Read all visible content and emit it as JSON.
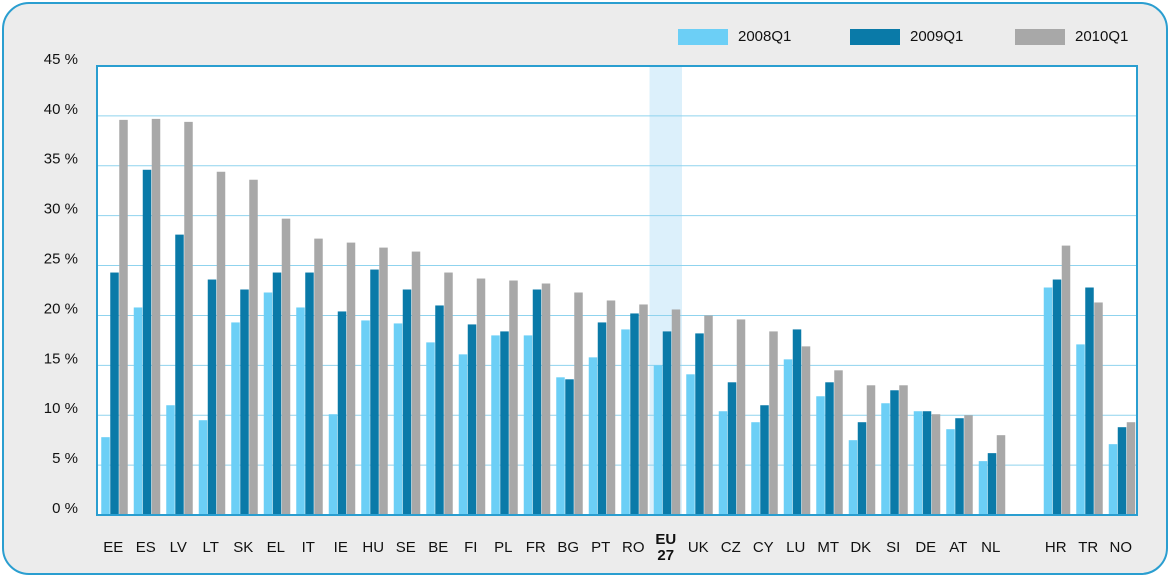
{
  "chart_data": {
    "type": "bar",
    "categories": [
      "EE",
      "ES",
      "LV",
      "LT",
      "SK",
      "EL",
      "IT",
      "IE",
      "HU",
      "SE",
      "BE",
      "FI",
      "PL",
      "FR",
      "BG",
      "PT",
      "RO",
      "EU 27",
      "UK",
      "CZ",
      "CY",
      "LU",
      "MT",
      "DK",
      "SI",
      "DE",
      "AT",
      "NL",
      null,
      "HR",
      "TR",
      "NO"
    ],
    "series": [
      {
        "name": "2008Q1",
        "color": "#6ccff6",
        "values": [
          7.8,
          20.8,
          11.0,
          9.5,
          19.3,
          22.3,
          20.8,
          10.1,
          19.5,
          19.2,
          17.3,
          16.1,
          18.0,
          18.0,
          13.8,
          15.8,
          18.6,
          15.0,
          14.1,
          10.4,
          9.3,
          15.6,
          11.9,
          7.5,
          11.2,
          10.4,
          8.6,
          5.4,
          null,
          22.8,
          17.1,
          7.1
        ]
      },
      {
        "name": "2009Q1",
        "color": "#0a7aa8",
        "values": [
          24.3,
          34.6,
          28.1,
          23.6,
          22.6,
          24.3,
          24.3,
          20.4,
          24.6,
          22.6,
          21.0,
          19.1,
          18.4,
          22.6,
          13.6,
          19.3,
          20.2,
          18.4,
          18.2,
          13.3,
          11.0,
          18.6,
          13.3,
          9.3,
          12.5,
          10.4,
          9.7,
          6.2,
          null,
          23.6,
          22.8,
          8.8
        ]
      },
      {
        "name": "2010Q1",
        "color": "#a8a8a8",
        "values": [
          39.6,
          39.7,
          39.4,
          34.4,
          33.6,
          29.7,
          27.7,
          27.3,
          26.8,
          26.4,
          24.3,
          23.7,
          23.5,
          23.2,
          22.3,
          21.5,
          21.1,
          20.6,
          20.0,
          19.6,
          18.4,
          16.9,
          14.5,
          13.0,
          13.0,
          10.1,
          10.0,
          8.0,
          null,
          27.0,
          21.3,
          9.3
        ]
      }
    ],
    "ylim": [
      0,
      45
    ],
    "yticks": [
      {
        "value": 0,
        "label": "0 %"
      },
      {
        "value": 5,
        "label": "5 %"
      },
      {
        "value": 10,
        "label": "10 %"
      },
      {
        "value": 15,
        "label": "15 %"
      },
      {
        "value": 20,
        "label": "20 %"
      },
      {
        "value": 25,
        "label": "25 %"
      },
      {
        "value": 30,
        "label": "30 %"
      },
      {
        "value": 35,
        "label": "35 %"
      },
      {
        "value": 40,
        "label": "40 %"
      },
      {
        "value": 45,
        "label": "45 %"
      }
    ],
    "grid": true,
    "legend": "top-right"
  }
}
